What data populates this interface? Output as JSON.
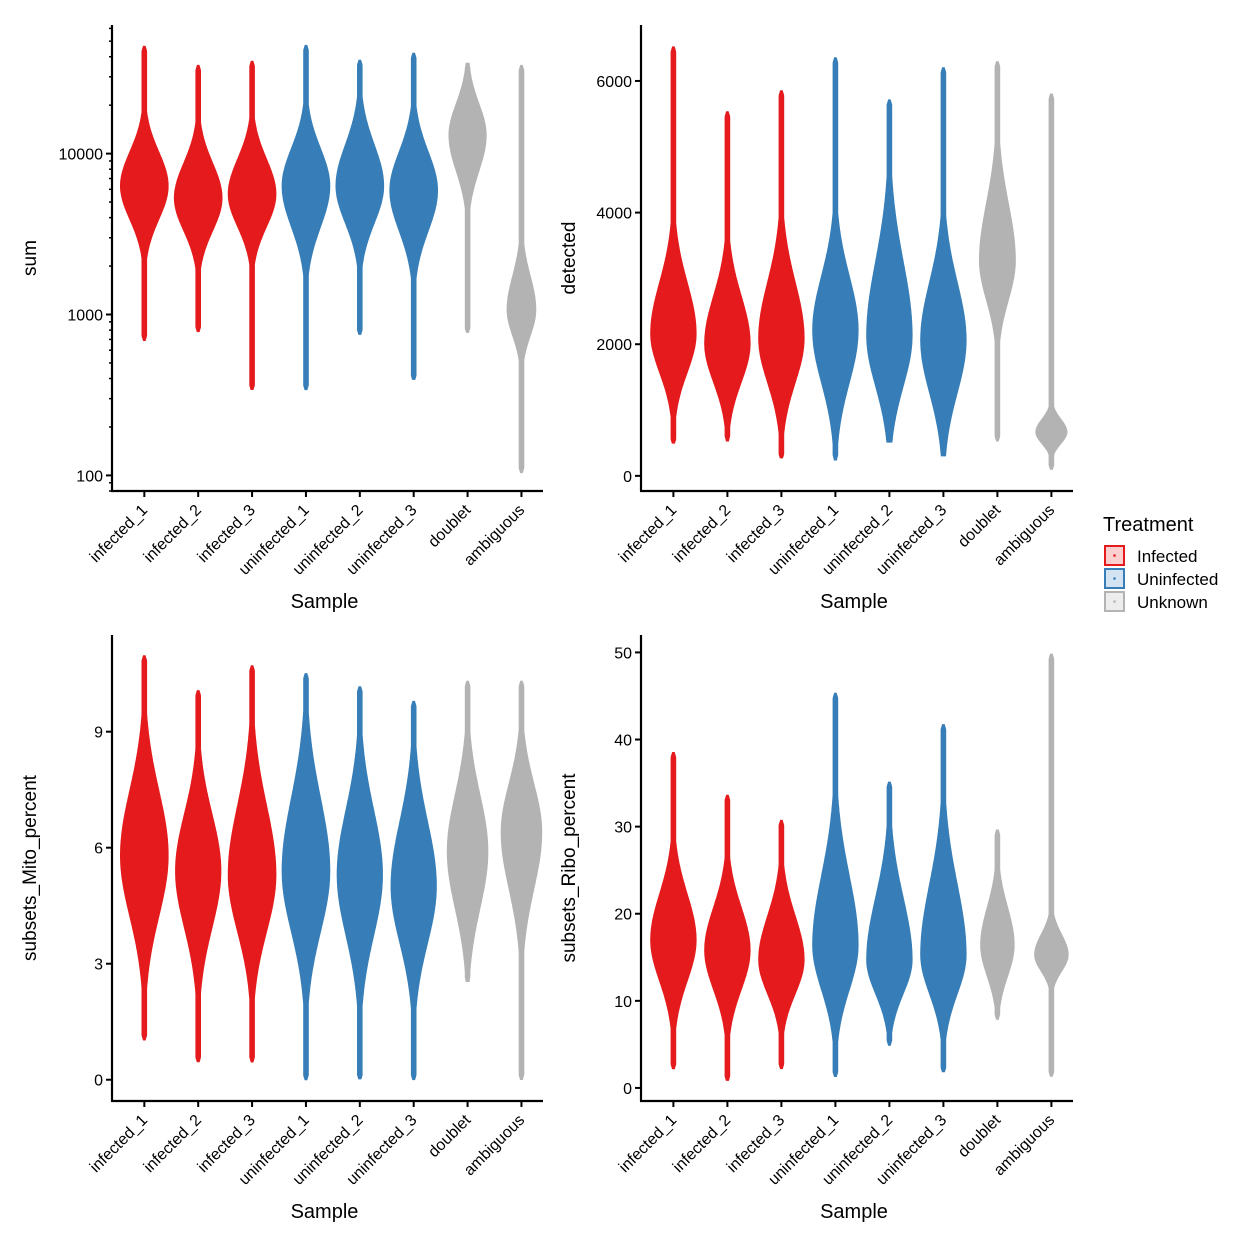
{
  "colors": {
    "Infected": "#E41A1C",
    "Uninfected": "#377EB8",
    "Unknown": "#B3B3B3"
  },
  "legend": {
    "title": "Treatment",
    "placement": "right",
    "entries": [
      {
        "label": "Infected",
        "color": "#E41A1C",
        "fill": "#F9CFCF"
      },
      {
        "label": "Uninfected",
        "color": "#377EB8",
        "fill": "#D3E3F1"
      },
      {
        "label": "Unknown",
        "color": "#B3B3B3",
        "fill": "#EDEDED"
      }
    ]
  },
  "chart_data": [
    {
      "type": "violin",
      "xlabel": "Sample",
      "ylabel": "sum",
      "yscale": "log",
      "ylim": [
        80,
        63000
      ],
      "yticks": [
        100,
        1000,
        10000
      ],
      "ytick_labels": [
        "100",
        "1000",
        "10000"
      ],
      "categories": [
        "infected_1",
        "infected_2",
        "infected_3",
        "uninfected_1",
        "uninfected_2",
        "uninfected_3",
        "doublet",
        "ambiguous"
      ],
      "treatment": [
        "Infected",
        "Infected",
        "Infected",
        "Uninfected",
        "Uninfected",
        "Uninfected",
        "Unknown",
        "Unknown"
      ],
      "violins": [
        {
          "min": 690,
          "q25": 4000,
          "mode": 6300,
          "q75": 10000,
          "max": 46400,
          "rel_width": 1.0
        },
        {
          "min": 780,
          "q25": 3400,
          "mode": 5300,
          "q75": 8500,
          "max": 35300,
          "rel_width": 1.0
        },
        {
          "min": 340,
          "q25": 3600,
          "mode": 5600,
          "q75": 9000,
          "max": 37400,
          "rel_width": 1.0
        },
        {
          "min": 340,
          "q25": 3600,
          "mode": 6300,
          "q75": 10500,
          "max": 47000,
          "rel_width": 1.0
        },
        {
          "min": 750,
          "q25": 3800,
          "mode": 6300,
          "q75": 11000,
          "max": 38000,
          "rel_width": 1.0
        },
        {
          "min": 390,
          "q25": 3400,
          "mode": 5900,
          "q75": 10000,
          "max": 42000,
          "rel_width": 1.0
        },
        {
          "min": 770,
          "q25": 8000,
          "mode": 13000,
          "q75": 20000,
          "max": 36400,
          "rel_width": 0.78
        },
        {
          "min": 104,
          "q25": 750,
          "mode": 1070,
          "q75": 1700,
          "max": 35300,
          "rel_width": 0.6
        }
      ]
    },
    {
      "type": "violin",
      "xlabel": "Sample",
      "ylabel": "detected",
      "yscale": "linear",
      "ylim": [
        -230,
        6850
      ],
      "yticks": [
        0,
        2000,
        4000,
        6000
      ],
      "ytick_labels": [
        "0",
        "2000",
        "4000",
        "6000"
      ],
      "categories": [
        "infected_1",
        "infected_2",
        "infected_3",
        "uninfected_1",
        "uninfected_2",
        "uninfected_3",
        "doublet",
        "ambiguous"
      ],
      "treatment": [
        "Infected",
        "Infected",
        "Infected",
        "Uninfected",
        "Uninfected",
        "Uninfected",
        "Unknown",
        "Unknown"
      ],
      "violins": [
        {
          "min": 484,
          "q25": 1600,
          "mode": 2160,
          "q75": 2900,
          "max": 6515,
          "rel_width": 0.95
        },
        {
          "min": 530,
          "q25": 1450,
          "mode": 2010,
          "q75": 2700,
          "max": 5530,
          "rel_width": 0.95
        },
        {
          "min": 260,
          "q25": 1450,
          "mode": 2090,
          "q75": 2900,
          "max": 5850,
          "rel_width": 0.95
        },
        {
          "min": 240,
          "q25": 1450,
          "mode": 2210,
          "q75": 3000,
          "max": 6350,
          "rel_width": 0.95
        },
        {
          "min": 500,
          "q25": 1400,
          "mode": 2130,
          "q75": 3200,
          "max": 5710,
          "rel_width": 0.95
        },
        {
          "min": 300,
          "q25": 1300,
          "mode": 2060,
          "q75": 2900,
          "max": 6200,
          "rel_width": 0.95
        },
        {
          "min": 530,
          "q25": 2700,
          "mode": 3270,
          "q75": 4100,
          "max": 6290,
          "rel_width": 0.75
        },
        {
          "min": 90,
          "q25": 500,
          "mode": 665,
          "q75": 850,
          "max": 5800,
          "rel_width": 0.65
        }
      ]
    },
    {
      "type": "violin",
      "xlabel": "Sample",
      "ylabel": "subsets_Mito_percent",
      "yscale": "linear",
      "ylim": [
        -0.55,
        11.5
      ],
      "yticks": [
        0,
        3,
        6,
        9
      ],
      "ytick_labels": [
        "0",
        "3",
        "6",
        "9"
      ],
      "categories": [
        "infected_1",
        "infected_2",
        "infected_3",
        "uninfected_1",
        "uninfected_2",
        "uninfected_3",
        "doublet",
        "ambiguous"
      ],
      "treatment": [
        "Infected",
        "Infected",
        "Infected",
        "Uninfected",
        "Uninfected",
        "Uninfected",
        "Unknown",
        "Unknown"
      ],
      "violins": [
        {
          "min": 1.03,
          "q25": 4.3,
          "mode": 5.8,
          "q75": 7.4,
          "max": 10.96,
          "rel_width": 1.0
        },
        {
          "min": 0.46,
          "q25": 4.0,
          "mode": 5.4,
          "q75": 6.8,
          "max": 10.06,
          "rel_width": 0.95
        },
        {
          "min": 0.46,
          "q25": 3.9,
          "mode": 5.3,
          "q75": 7.0,
          "max": 10.7,
          "rel_width": 1.0
        },
        {
          "min": 0,
          "q25": 3.9,
          "mode": 5.4,
          "q75": 7.2,
          "max": 10.5,
          "rel_width": 1.0
        },
        {
          "min": 0,
          "q25": 3.8,
          "mode": 5.3,
          "q75": 6.9,
          "max": 10.16,
          "rel_width": 0.95
        },
        {
          "min": 0,
          "q25": 3.6,
          "mode": 5.0,
          "q75": 6.6,
          "max": 9.78,
          "rel_width": 0.95
        },
        {
          "min": 2.53,
          "q25": 4.5,
          "mode": 5.9,
          "q75": 7.3,
          "max": 10.3,
          "rel_width": 0.85
        },
        {
          "min": 0,
          "q25": 5.0,
          "mode": 6.4,
          "q75": 7.6,
          "max": 10.3,
          "rel_width": 0.85
        }
      ]
    },
    {
      "type": "violin",
      "xlabel": "Sample",
      "ylabel": "subsets_Ribo_percent",
      "yscale": "linear",
      "ylim": [
        -1.5,
        52
      ],
      "yticks": [
        0,
        10,
        20,
        30,
        40,
        50
      ],
      "ytick_labels": [
        "0",
        "10",
        "20",
        "30",
        "40",
        "50"
      ],
      "categories": [
        "infected_1",
        "infected_2",
        "infected_3",
        "uninfected_1",
        "uninfected_2",
        "uninfected_3",
        "doublet",
        "ambiguous"
      ],
      "treatment": [
        "Infected",
        "Infected",
        "Infected",
        "Uninfected",
        "Uninfected",
        "Uninfected",
        "Unknown",
        "Unknown"
      ],
      "violins": [
        {
          "min": 2.2,
          "q25": 12.5,
          "mode": 17.0,
          "q75": 22.0,
          "max": 38.5,
          "rel_width": 0.95
        },
        {
          "min": 0.8,
          "q25": 11.5,
          "mode": 15.8,
          "q75": 20.5,
          "max": 33.6,
          "rel_width": 0.95
        },
        {
          "min": 2.2,
          "q25": 11.0,
          "mode": 14.7,
          "q75": 19.5,
          "max": 30.7,
          "rel_width": 0.95
        },
        {
          "min": 1.3,
          "q25": 11.5,
          "mode": 16.4,
          "q75": 24.0,
          "max": 45.3,
          "rel_width": 0.95
        },
        {
          "min": 4.9,
          "q25": 11.0,
          "mode": 14.7,
          "q75": 21.5,
          "max": 35.1,
          "rel_width": 0.95
        },
        {
          "min": 1.8,
          "q25": 11.0,
          "mode": 15.3,
          "q75": 23.0,
          "max": 41.7,
          "rel_width": 0.95
        },
        {
          "min": 7.9,
          "q25": 13.0,
          "mode": 16.4,
          "q75": 20.5,
          "max": 29.6,
          "rel_width": 0.7
        },
        {
          "min": 1.3,
          "q25": 13.5,
          "mode": 15.3,
          "q75": 17.5,
          "max": 49.8,
          "rel_width": 0.7
        }
      ]
    }
  ]
}
